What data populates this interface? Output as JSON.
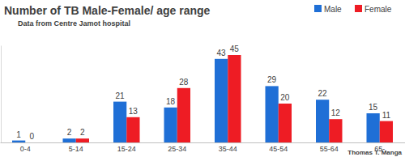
{
  "chart_data": {
    "type": "bar",
    "title": "Number of TB Male-Female/ age range",
    "subtitle": "Data from Centre Jamot hospital",
    "annotations": [
      "Thomas T. Manga"
    ],
    "categories": [
      "0-4",
      "5-14",
      "15-24",
      "25-34",
      "35-44",
      "45-54",
      "55-64",
      "65-"
    ],
    "series": [
      {
        "name": "Male",
        "color": "#1f6fd6",
        "values": [
          1,
          2,
          21,
          18,
          43,
          29,
          22,
          15
        ]
      },
      {
        "name": "Female",
        "color": "#ee1c24",
        "values": [
          0,
          2,
          13,
          28,
          45,
          20,
          12,
          11
        ]
      }
    ],
    "ylim": [
      0,
      50
    ],
    "yticks": [],
    "grid": false,
    "legend": "top-right",
    "data_labels": true,
    "tick_labels": "x"
  }
}
